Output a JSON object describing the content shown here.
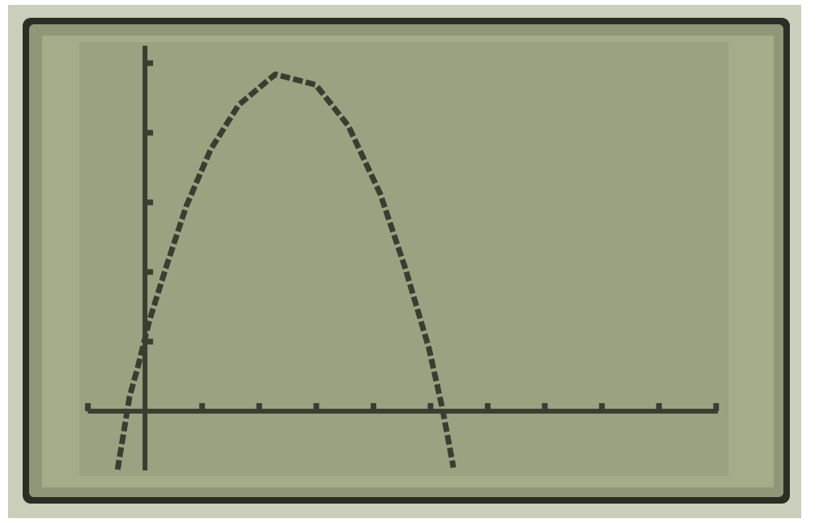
{
  "chart_data": {
    "type": "line",
    "x": [
      -0.48,
      -0.27,
      -0.13,
      0.08,
      0.37,
      0.72,
      1.15,
      1.64,
      2.28,
      2.99,
      3.56,
      4.12,
      4.55,
      4.97,
      5.21,
      5.4
    ],
    "values": [
      -0.84,
      0.21,
      0.62,
      1.31,
      2.07,
      2.94,
      3.76,
      4.4,
      4.84,
      4.69,
      4.1,
      3.12,
      2.07,
      0.91,
      0.03,
      -0.81
    ],
    "color": "#3a3e31",
    "xlim": [
      -1.15,
      10.2
    ],
    "ylim": [
      -0.85,
      5.25
    ],
    "xticks": [
      -1,
      1,
      2,
      3,
      4,
      5,
      6,
      7,
      8,
      9,
      10
    ],
    "yticks": [
      1,
      2,
      3,
      4,
      5
    ]
  }
}
